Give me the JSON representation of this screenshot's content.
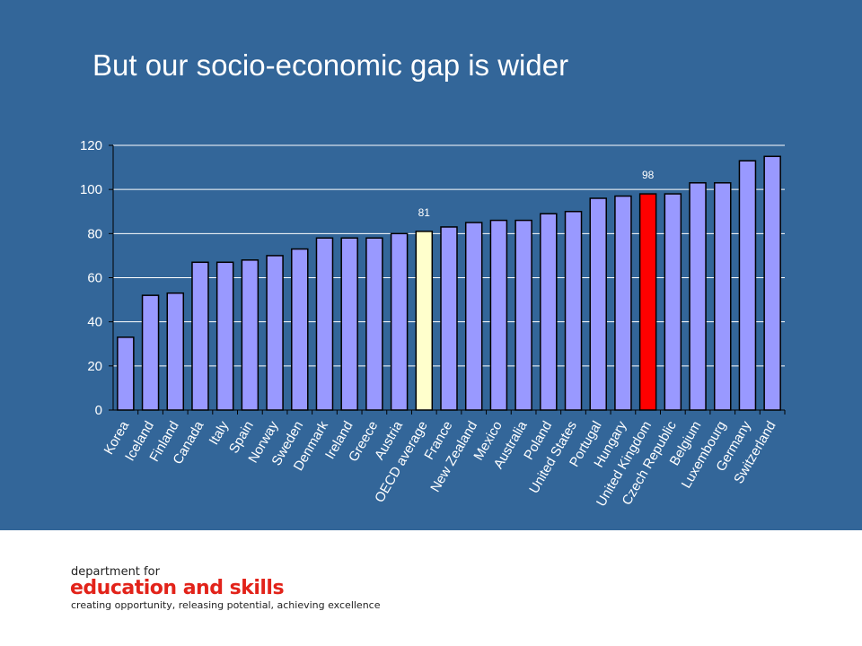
{
  "slide": {
    "title": "But our socio-economic gap is wider",
    "bg_color": "#336699"
  },
  "footer": {
    "line1": "department for",
    "line2": "education and skills",
    "line3": "creating opportunity, releasing potential, achieving excellence"
  },
  "chart_data": {
    "type": "bar",
    "title": "",
    "xlabel": "",
    "ylabel": "",
    "ylim": [
      0,
      120
    ],
    "yticks": [
      0,
      20,
      40,
      60,
      80,
      100,
      120
    ],
    "grid": true,
    "legend": "none",
    "colors": {
      "default": "#9999ff",
      "oecd": "#ffffcc",
      "uk": "#ff0000"
    },
    "categories": [
      "Korea",
      "Iceland",
      "Finland",
      "Canada",
      "Italy",
      "Spain",
      "Norway",
      "Sweden",
      "Denmark",
      "Ireland",
      "Greece",
      "Austria",
      "OECD average",
      "France",
      "New Zealand",
      "Mexico",
      "Australia",
      "Poland",
      "United States",
      "Portugal",
      "Hungary",
      "United Kingdom",
      "Czech Republic",
      "Belgium",
      "Luxembourg",
      "Germany",
      "Switzerland"
    ],
    "values": [
      33,
      52,
      53,
      67,
      67,
      68,
      70,
      73,
      78,
      78,
      78,
      80,
      81,
      83,
      85,
      86,
      86,
      89,
      90,
      96,
      97,
      98,
      98,
      103,
      103,
      113,
      115
    ],
    "highlights": [
      {
        "category": "OECD average",
        "color": "#ffffcc",
        "label": "81"
      },
      {
        "category": "United Kingdom",
        "color": "#ff0000",
        "label": "98"
      }
    ]
  }
}
